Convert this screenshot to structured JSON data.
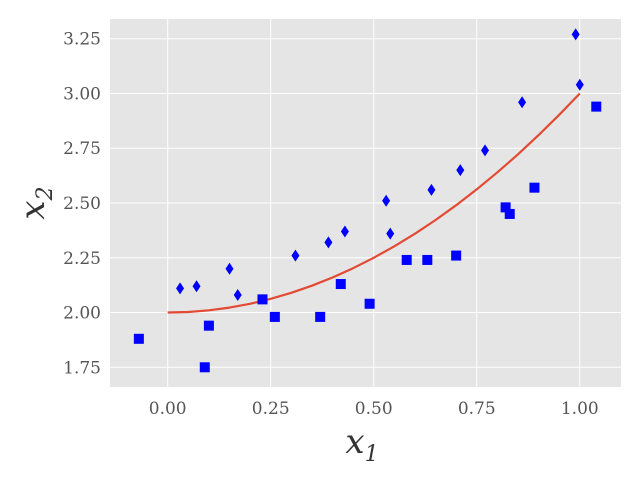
{
  "chart_data": {
    "type": "scatter",
    "xlabel": "x1",
    "ylabel": "x2",
    "xlabel_main": "x",
    "xlabel_sub": "1",
    "ylabel_main": "x",
    "ylabel_sub": "2",
    "xlim": [
      -0.14,
      1.1
    ],
    "ylim": [
      1.66,
      3.34
    ],
    "xticks": [
      0.0,
      0.25,
      0.5,
      0.75,
      1.0
    ],
    "xtick_labels": [
      "0.00",
      "0.25",
      "0.50",
      "0.75",
      "1.00"
    ],
    "yticks": [
      1.75,
      2.0,
      2.25,
      2.5,
      2.75,
      3.0,
      3.25
    ],
    "ytick_labels": [
      "1.75",
      "2.00",
      "2.25",
      "2.50",
      "2.75",
      "3.00",
      "3.25"
    ],
    "grid": true,
    "background": "#e5e5e5",
    "series": [
      {
        "marker": "diamond",
        "color": "#0000ff",
        "points": [
          [
            0.03,
            2.11
          ],
          [
            0.07,
            2.12
          ],
          [
            0.15,
            2.2
          ],
          [
            0.17,
            2.08
          ],
          [
            0.31,
            2.26
          ],
          [
            0.39,
            2.32
          ],
          [
            0.43,
            2.37
          ],
          [
            0.53,
            2.51
          ],
          [
            0.54,
            2.36
          ],
          [
            0.64,
            2.56
          ],
          [
            0.71,
            2.65
          ],
          [
            0.77,
            2.74
          ],
          [
            0.86,
            2.96
          ],
          [
            0.99,
            3.27
          ],
          [
            1.0,
            3.04
          ]
        ]
      },
      {
        "marker": "square",
        "color": "#0000ff",
        "points": [
          [
            -0.07,
            1.88
          ],
          [
            0.09,
            1.75
          ],
          [
            0.1,
            1.94
          ],
          [
            0.23,
            2.06
          ],
          [
            0.26,
            1.98
          ],
          [
            0.37,
            1.98
          ],
          [
            0.42,
            2.13
          ],
          [
            0.49,
            2.04
          ],
          [
            0.58,
            2.24
          ],
          [
            0.63,
            2.24
          ],
          [
            0.7,
            2.26
          ],
          [
            0.82,
            2.48
          ],
          [
            0.83,
            2.45
          ],
          [
            0.89,
            2.57
          ],
          [
            1.04,
            2.94
          ]
        ]
      },
      {
        "marker": "line",
        "color": "#e24a33",
        "points": [
          [
            0.0,
            2.0
          ],
          [
            0.05,
            2.0025
          ],
          [
            0.1,
            2.01
          ],
          [
            0.15,
            2.0225
          ],
          [
            0.2,
            2.04
          ],
          [
            0.25,
            2.0625
          ],
          [
            0.3,
            2.09
          ],
          [
            0.35,
            2.1225
          ],
          [
            0.4,
            2.16
          ],
          [
            0.45,
            2.2025
          ],
          [
            0.5,
            2.25
          ],
          [
            0.55,
            2.3025
          ],
          [
            0.6,
            2.36
          ],
          [
            0.65,
            2.4225
          ],
          [
            0.7,
            2.49
          ],
          [
            0.75,
            2.5625
          ],
          [
            0.8,
            2.64
          ],
          [
            0.85,
            2.7225
          ],
          [
            0.9,
            2.81
          ],
          [
            0.95,
            2.9025
          ],
          [
            1.0,
            3.0
          ]
        ]
      }
    ]
  }
}
